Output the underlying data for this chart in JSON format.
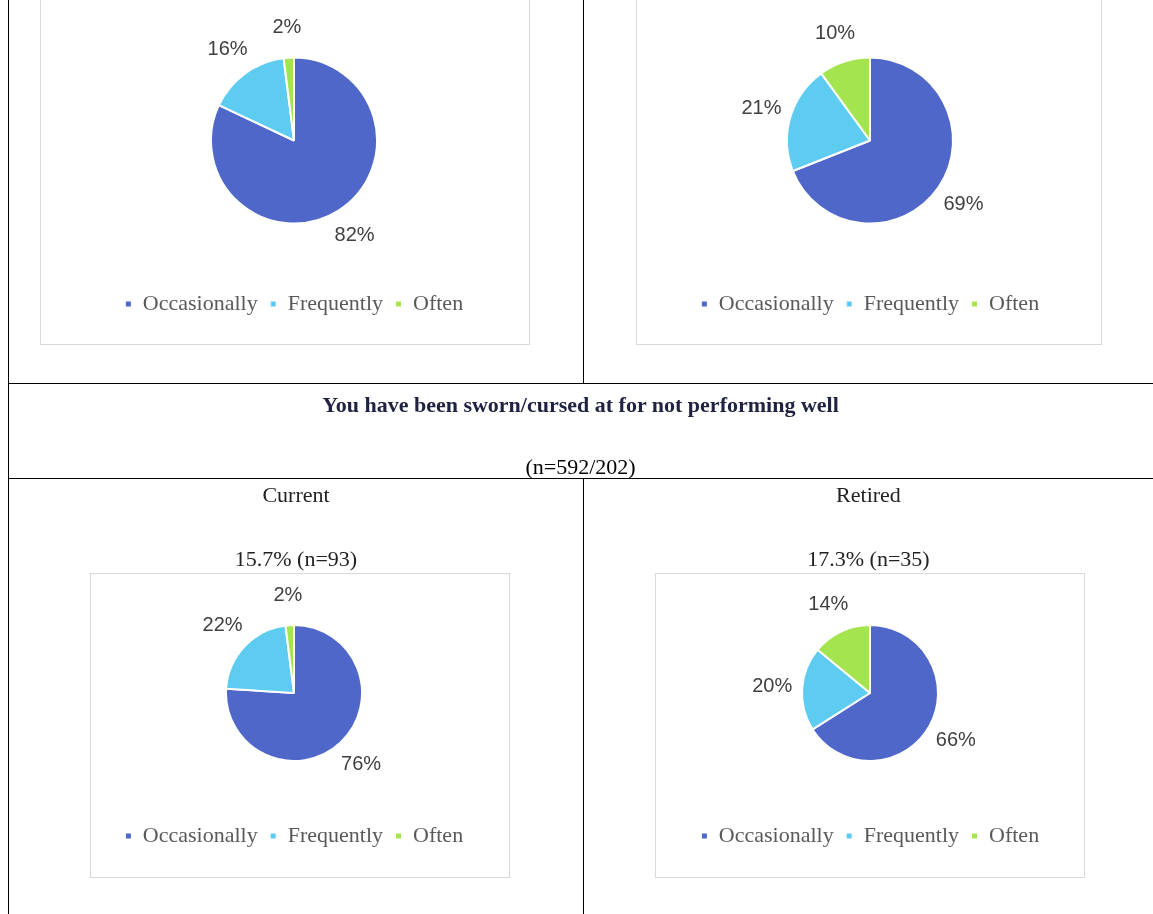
{
  "chart_data": [
    {
      "type": "pie",
      "categories": [
        "Occasionally",
        "Frequently",
        "Often"
      ],
      "values": [
        82,
        16,
        2
      ],
      "value_labels": [
        "82%",
        "16%",
        "2%"
      ],
      "colors": [
        "#4f67c9",
        "#5ecbf0",
        "#a4e44f"
      ],
      "legend": "bottom"
    },
    {
      "type": "pie",
      "categories": [
        "Occasionally",
        "Frequently",
        "Often"
      ],
      "values": [
        69,
        21,
        10
      ],
      "value_labels": [
        "69%",
        "21%",
        "10%"
      ],
      "colors": [
        "#4f67c9",
        "#5ecbf0",
        "#a4e44f"
      ],
      "legend": "bottom"
    },
    {
      "type": "pie",
      "title": "Current",
      "subtitle": "15.7% (n=93)",
      "annotations": [
        "You have been sworn/cursed at for not performing well",
        "(n=592/202)"
      ],
      "categories": [
        "Occasionally",
        "Frequently",
        "Often"
      ],
      "values": [
        76,
        22,
        2
      ],
      "value_labels": [
        "76%",
        "22%",
        "2%"
      ],
      "colors": [
        "#4f67c9",
        "#5ecbf0",
        "#a4e44f"
      ],
      "legend": "bottom"
    },
    {
      "type": "pie",
      "title": "Retired",
      "subtitle": "17.3% (n=35)",
      "categories": [
        "Occasionally",
        "Frequently",
        "Often"
      ],
      "values": [
        66,
        20,
        14
      ],
      "value_labels": [
        "66%",
        "20%",
        "14%"
      ],
      "colors": [
        "#4f67c9",
        "#5ecbf0",
        "#a4e44f"
      ],
      "legend": "bottom"
    }
  ]
}
